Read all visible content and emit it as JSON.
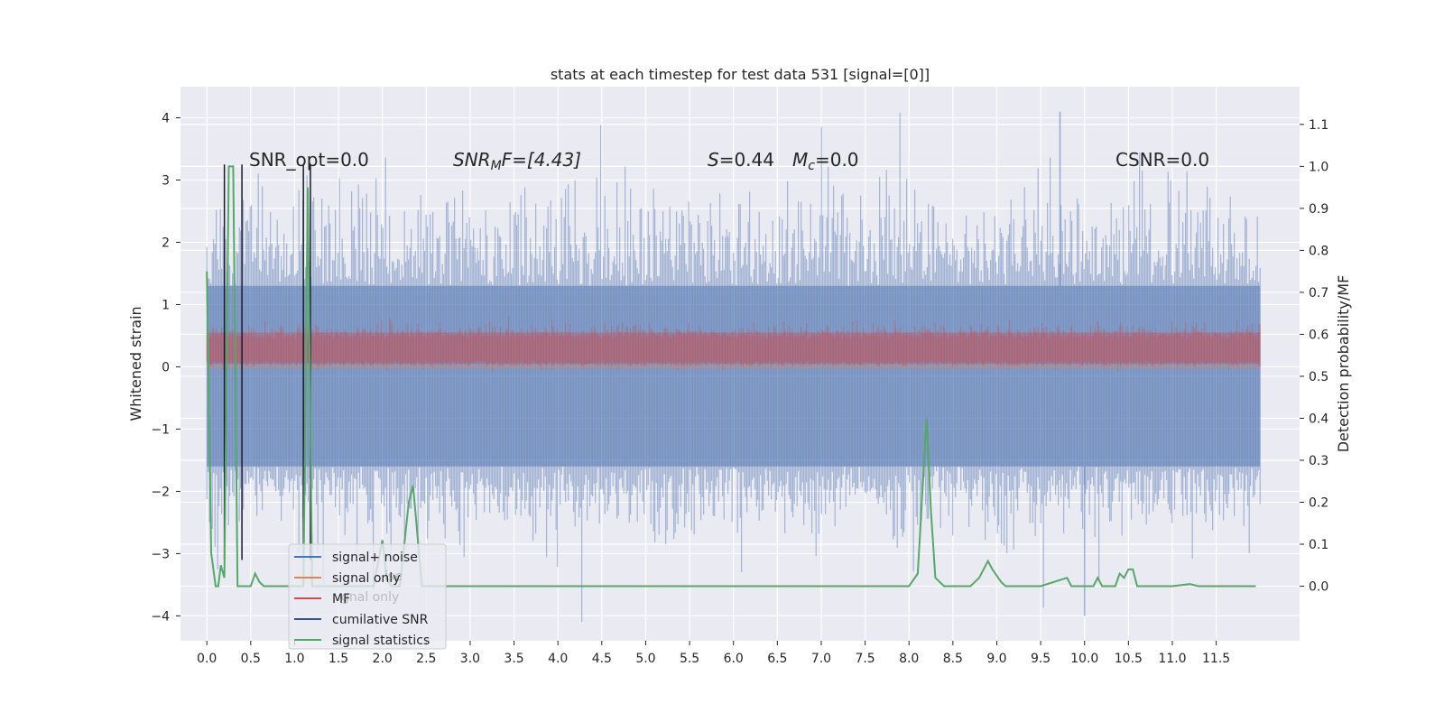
{
  "chart_data": {
    "type": "line",
    "title": "stats at each timestep for test data 531 [signal=[0]]",
    "xlabel": "",
    "ylabel": "Whitened strain",
    "y2label": "Detection probability/MF",
    "xlim": [
      -0.3,
      12.45
    ],
    "ylim": [
      -4.4,
      4.5
    ],
    "y2lim": [
      -0.13,
      1.19
    ],
    "xticks": [
      "0.0",
      "0.5",
      "1.0",
      "1.5",
      "2.0",
      "2.5",
      "3.0",
      "3.5",
      "4.0",
      "4.5",
      "5.0",
      "5.5",
      "6.0",
      "6.5",
      "7.0",
      "7.5",
      "8.0",
      "8.5",
      "9.0",
      "9.5",
      "10.0",
      "10.5",
      "11.0",
      "11.5"
    ],
    "yticks": [
      "4",
      "3",
      "2",
      "1",
      "0",
      "−1",
      "−2",
      "−3",
      "−4"
    ],
    "y2ticks": [
      "1.1",
      "1.0",
      "0.9",
      "0.8",
      "0.7",
      "0.6",
      "0.5",
      "0.4",
      "0.3",
      "0.2",
      "0.1",
      "0.0"
    ],
    "grid": true,
    "legend_position": "lower-left",
    "colors": {
      "signal_noise": "#4c72b0",
      "signal_only": "#dd8452",
      "mf": "#c44e52",
      "cumulative_snr": "#324f8f",
      "signal_statistics": "#55a868",
      "axes_bg": "#eaeaf2",
      "grid": "#ffffff"
    },
    "annotations": {
      "snr_opt": "SNR_opt=0.0",
      "snr_mf_prefix": "SNR",
      "snr_mf_sub": "M",
      "snr_mf_suffix": "F=[4.43]",
      "s_prefix": "S",
      "s_value": "=0.44",
      "mc_prefix": "M",
      "mc_sub": "c",
      "mc_value": "=0.0",
      "csnr": "CSNR=0.0"
    },
    "series": [
      {
        "name": "signal+ noise",
        "kind": "noise",
        "x_range": [
          0.0,
          12.0
        ],
        "typical_range": [
          -1.6,
          1.3
        ],
        "extremes": [
          4.1,
          -4.0
        ]
      },
      {
        "name": "signal only",
        "kind": "flat",
        "value": 0.0
      },
      {
        "name": "MF",
        "kind": "noise",
        "x_range": [
          0.0,
          12.0
        ],
        "typical_range": [
          0.05,
          0.55
        ]
      },
      {
        "name": "cumilative SNR",
        "kind": "vertical_spikes",
        "x": [
          0.2,
          0.4,
          1.1,
          1.18
        ],
        "y_top": 3.25,
        "y_bottom": -3.1
      },
      {
        "name": "signal statistics",
        "kind": "line",
        "axis": "right",
        "x": [
          0.0,
          0.05,
          0.1,
          0.13,
          0.16,
          0.2,
          0.25,
          0.3,
          0.35,
          0.4,
          0.45,
          0.5,
          0.55,
          0.6,
          0.65,
          0.7,
          0.8,
          1.0,
          1.05,
          1.1,
          1.15,
          1.2,
          1.25,
          1.3,
          1.6,
          1.9,
          2.0,
          2.05,
          2.1,
          2.2,
          2.3,
          2.35,
          2.4,
          2.45,
          2.5,
          2.55,
          2.6,
          3.0,
          4.0,
          5.0,
          5.5,
          6.0,
          7.0,
          7.5,
          8.0,
          8.1,
          8.2,
          8.25,
          8.3,
          8.4,
          8.45,
          8.5,
          8.7,
          8.8,
          8.9,
          8.95,
          9.05,
          9.1,
          9.2,
          9.5,
          9.8,
          9.85,
          9.9,
          10.0,
          10.05,
          10.1,
          10.15,
          10.2,
          10.3,
          10.35,
          10.4,
          10.45,
          10.5,
          10.55,
          10.6,
          10.65,
          10.7,
          10.8,
          11.0,
          11.2,
          11.3,
          11.5,
          11.9,
          11.95
        ],
        "y": [
          0.75,
          0.08,
          0.0,
          0.0,
          0.05,
          0.02,
          1.0,
          1.0,
          0.0,
          0.0,
          0.0,
          0.0,
          0.03,
          0.01,
          0.0,
          0.0,
          0.0,
          0.0,
          0.0,
          0.0,
          0.95,
          0.0,
          0.0,
          0.0,
          0.0,
          0.0,
          0.11,
          0.02,
          0.0,
          0.0,
          0.2,
          0.24,
          0.12,
          0.0,
          0.0,
          0.0,
          0.0,
          0.0,
          0.0,
          0.0,
          0.0,
          0.0,
          0.0,
          0.0,
          0.0,
          0.03,
          0.4,
          0.18,
          0.02,
          0.0,
          0.0,
          0.0,
          0.0,
          0.02,
          0.06,
          0.04,
          0.01,
          0.0,
          0.0,
          0.0,
          0.02,
          0.0,
          0.0,
          0.0,
          0.0,
          0.0,
          0.02,
          0.0,
          0.0,
          0.0,
          0.03,
          0.02,
          0.04,
          0.04,
          0.0,
          0.0,
          0.0,
          0.0,
          0.0,
          0.005,
          0.0,
          0.0,
          0.0,
          0.0
        ]
      }
    ],
    "legend": [
      "signal+ noise",
      "signal only",
      "MF",
      "cumilative SNR",
      "signal statistics"
    ],
    "legend_overlaps": [
      "ise",
      "gnal only"
    ]
  }
}
